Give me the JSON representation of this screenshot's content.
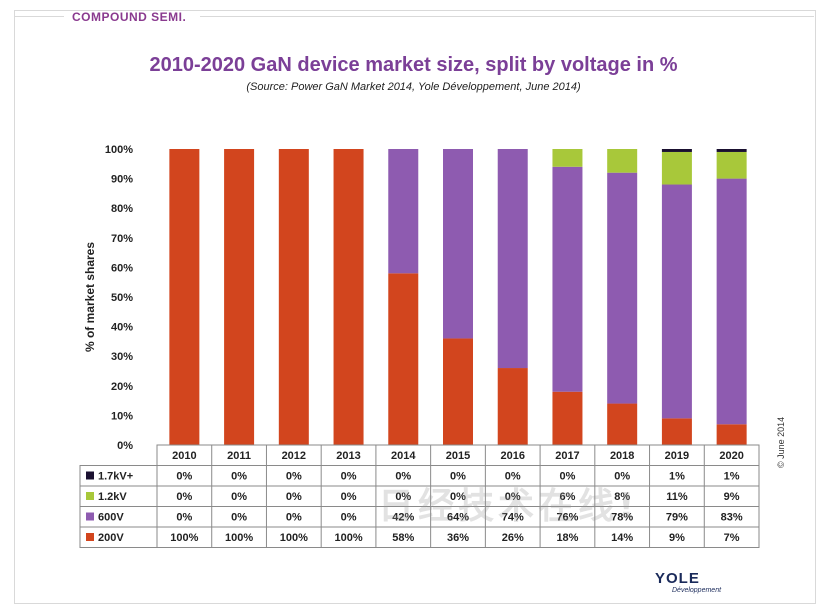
{
  "header": {
    "brand": "COMPOUND SEMI."
  },
  "chart_data": {
    "type": "bar",
    "stacked": true,
    "title": "2010-2020 GaN device market size, split by voltage in %",
    "subtitle": "(Source: Power GaN Market 2014, Yole Développement, June 2014)",
    "ylabel": "% of market shares",
    "xlabel": "",
    "ylim": [
      0,
      100
    ],
    "yticks": [
      "0%",
      "10%",
      "20%",
      "30%",
      "40%",
      "50%",
      "60%",
      "70%",
      "80%",
      "90%",
      "100%"
    ],
    "categories": [
      "2010",
      "2011",
      "2012",
      "2013",
      "2014",
      "2015",
      "2016",
      "2017",
      "2018",
      "2019",
      "2020"
    ],
    "series": [
      {
        "name": "1.7kV+",
        "color": "#1a1030",
        "values": [
          0,
          0,
          0,
          0,
          0,
          0,
          0,
          0,
          0,
          1,
          1
        ],
        "labels": [
          "0%",
          "0%",
          "0%",
          "0%",
          "0%",
          "0%",
          "0%",
          "0%",
          "0%",
          "1%",
          "1%"
        ]
      },
      {
        "name": "1.2kV",
        "color": "#a8c83a",
        "values": [
          0,
          0,
          0,
          0,
          0,
          0,
          0,
          6,
          8,
          11,
          9
        ],
        "labels": [
          "0%",
          "0%",
          "0%",
          "0%",
          "0%",
          "0%",
          "0%",
          "6%",
          "8%",
          "11%",
          "9%"
        ]
      },
      {
        "name": "600V",
        "color": "#8e5bb0",
        "values": [
          0,
          0,
          0,
          0,
          42,
          64,
          74,
          76,
          78,
          79,
          83
        ],
        "labels": [
          "0%",
          "0%",
          "0%",
          "0%",
          "42%",
          "64%",
          "74%",
          "76%",
          "78%",
          "79%",
          "83%"
        ]
      },
      {
        "name": "200V",
        "color": "#d2451e",
        "values": [
          100,
          100,
          100,
          100,
          58,
          36,
          26,
          18,
          14,
          9,
          7
        ],
        "labels": [
          "100%",
          "100%",
          "100%",
          "100%",
          "58%",
          "36%",
          "26%",
          "18%",
          "14%",
          "9%",
          "7%"
        ]
      }
    ],
    "grid": false,
    "legend": "table-below"
  },
  "footer": {
    "copyright": "© June 2014",
    "logo": "YOLE",
    "logo_sub": "Développement",
    "watermark": "日经技术在线!"
  }
}
